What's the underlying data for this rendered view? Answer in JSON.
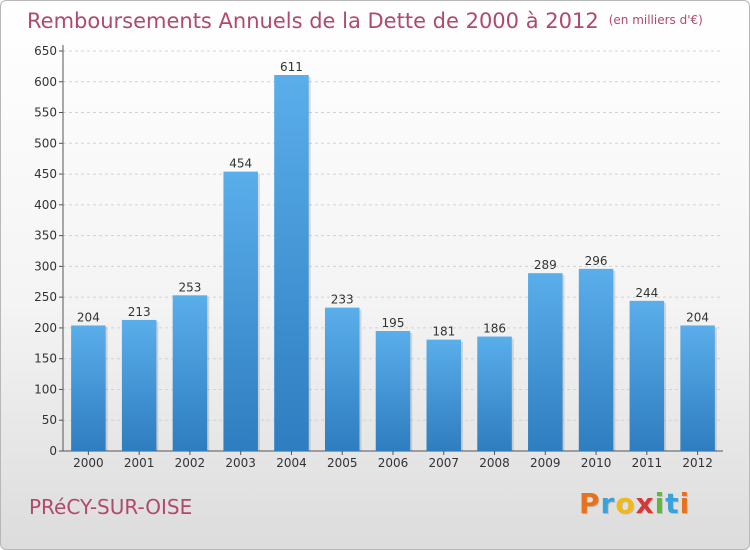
{
  "title": "Remboursements Annuels de la Dette de 2000 à 2012",
  "unit": "(en milliers d'€)",
  "city": "PRéCY-SUR-OISE",
  "logo": {
    "letters": [
      "P",
      "r",
      "o",
      "x",
      "i",
      "t",
      "i"
    ],
    "colors": [
      "#e8721c",
      "#3aa1d9",
      "#f2b81a",
      "#d23a3a",
      "#5fb83a",
      "#3aa1d9",
      "#e8721c"
    ]
  },
  "colors": {
    "bar_top": "#5aaeea",
    "bar_bottom": "#2e7dc0",
    "accent": "#b04a6b"
  },
  "chart_data": {
    "type": "bar",
    "title": "Remboursements Annuels de la Dette de 2000 à 2012",
    "xlabel": "",
    "ylabel": "",
    "categories": [
      "2000",
      "2001",
      "2002",
      "2003",
      "2004",
      "2005",
      "2006",
      "2007",
      "2008",
      "2009",
      "2010",
      "2011",
      "2012"
    ],
    "values": [
      204,
      213,
      253,
      454,
      611,
      233,
      195,
      181,
      186,
      289,
      296,
      244,
      204
    ],
    "ylim": [
      0,
      650
    ],
    "yticks": [
      0,
      50,
      100,
      150,
      200,
      250,
      300,
      350,
      400,
      450,
      500,
      550,
      600,
      650
    ],
    "grid": true,
    "legend": "none"
  }
}
